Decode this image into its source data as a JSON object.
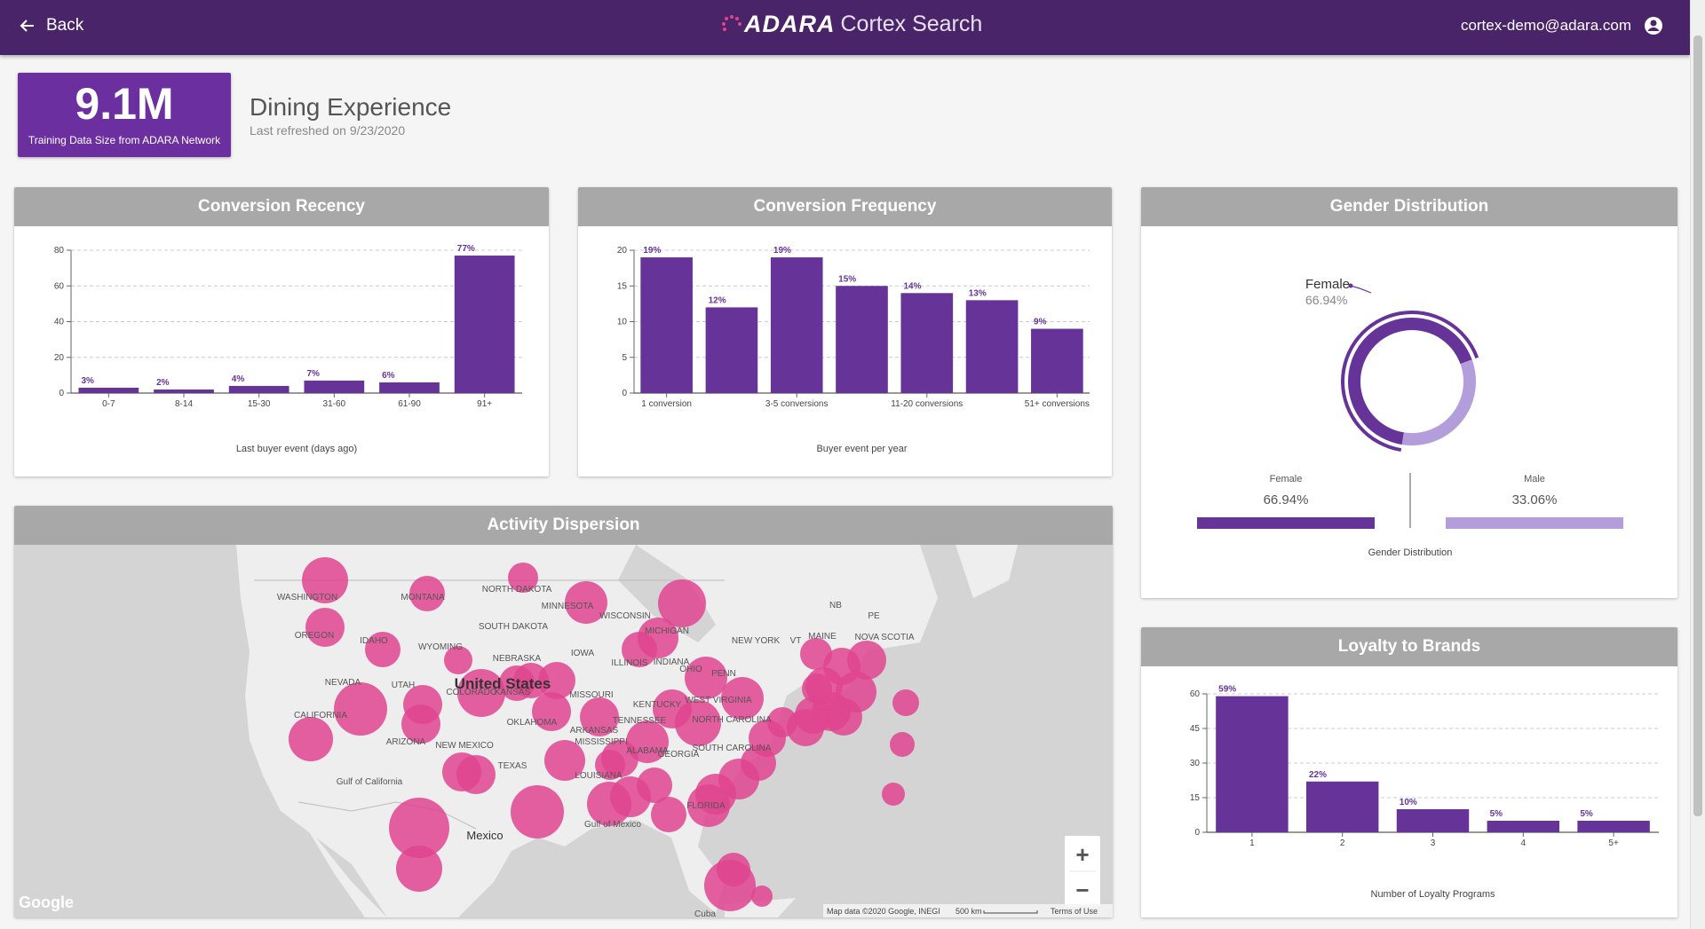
{
  "topbar": {
    "back_label": "Back",
    "brand_name": "ADARA",
    "brand_product": "Cortex Search",
    "user_email": "cortex-demo@adara.com"
  },
  "kpi": {
    "value": "9.1M",
    "label": "Training Data Size from ADARA Network"
  },
  "page": {
    "title": "Dining Experience",
    "subtitle": "Last refreshed on 9/23/2020"
  },
  "colors": {
    "purple": "#663399",
    "header_bg": "#4a2468",
    "light_purple": "#b39ddb",
    "map_dot": "#e0448f"
  },
  "cards": {
    "recency": {
      "title": "Conversion Recency",
      "chart_data": {
        "type": "bar",
        "categories": [
          "0-7",
          "8-14",
          "15-30",
          "31-60",
          "61-90",
          "91+"
        ],
        "values": [
          3,
          2,
          4,
          7,
          6,
          77
        ],
        "labels": [
          "3%",
          "2%",
          "4%",
          "7%",
          "6%",
          "77%"
        ],
        "xlabel": "Last buyer event (days ago)",
        "ylim": [
          0,
          80
        ],
        "yticks": [
          0,
          20,
          40,
          60,
          80
        ]
      }
    },
    "frequency": {
      "title": "Conversion Frequency",
      "chart_data": {
        "type": "bar",
        "categories": [
          "1 conversion",
          "",
          "3-5 conversions",
          "",
          "11-20 conversions",
          "",
          "51+ conversions"
        ],
        "values": [
          19,
          12,
          19,
          15,
          14,
          13,
          9
        ],
        "labels": [
          "19%",
          "12%",
          "19%",
          "15%",
          "14%",
          "13%",
          "9%"
        ],
        "xlabel": "Buyer event per year",
        "ylim": [
          0,
          20
        ],
        "yticks": [
          0,
          5,
          10,
          15,
          20
        ]
      }
    },
    "gender": {
      "title": "Gender Distribution",
      "chart_data": {
        "type": "pie",
        "categories": [
          "Female",
          "Male"
        ],
        "values": [
          66.94,
          33.06
        ],
        "labels": [
          "66.94%",
          "33.06%"
        ],
        "xlabel": "Gender Distribution"
      },
      "callout_name": "Female",
      "callout_value": "66.94%"
    },
    "activity": {
      "title": "Activity Dispersion",
      "map_labels": [
        "WASHINGTON",
        "MONTANA",
        "NORTH DAKOTA",
        "MINNESOTA",
        "OREGON",
        "IDAHO",
        "WYOMING",
        "SOUTH DAKOTA",
        "WISCONSIN",
        "MICHIGAN",
        "NEBRASKA",
        "IOWA",
        "ILLINOIS",
        "INDIANA",
        "OHIO",
        "NEVADA",
        "UTAH",
        "United States",
        "COLORADO",
        "KANSAS",
        "MISSOURI",
        "KENTUCKY",
        "CALIFORNIA",
        "OKLAHOMA",
        "TENNESSEE",
        "ARKANSAS",
        "ARIZONA",
        "NEW MEXICO",
        "MISSISSIPPI",
        "ALABAMA",
        "GEORGIA",
        "TEXAS",
        "LOUISIANA",
        "FLORIDA",
        "Mexico",
        "NEW YORK",
        "MAINE",
        "VT",
        "NB",
        "PE",
        "NOVA SCOTIA",
        "Gulf of Mexico",
        "Gulf of California",
        "Cuba",
        "PENN",
        "WEST VIRGINIA",
        "NORTH CAROLINA",
        "SOUTH CAROLINA"
      ],
      "attribution": "Map data ©2020 Google, INEGI",
      "scale": "500 km",
      "terms": "Terms of Use",
      "google": "Google",
      "zoom_in": "+",
      "zoom_out": "−"
    },
    "loyalty": {
      "title": "Loyalty to Brands",
      "chart_data": {
        "type": "bar",
        "categories": [
          "1",
          "2",
          "3",
          "4",
          "5+"
        ],
        "values": [
          59,
          22,
          10,
          5,
          5
        ],
        "labels": [
          "59%",
          "22%",
          "10%",
          "5%",
          "5%"
        ],
        "xlabel": "Number of Loyalty Programs",
        "ylim": [
          0,
          60
        ],
        "yticks": [
          0,
          15,
          30,
          45,
          60
        ]
      }
    }
  }
}
